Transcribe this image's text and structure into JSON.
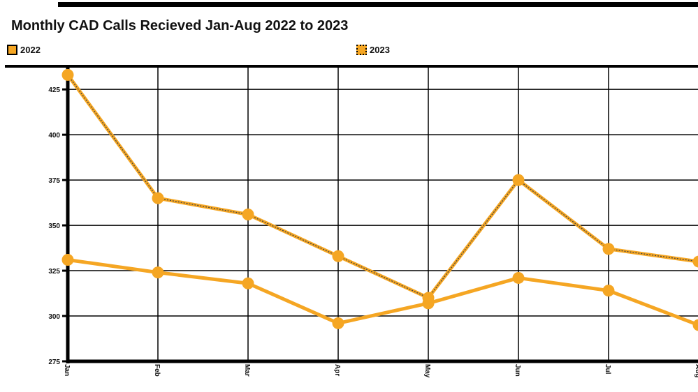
{
  "chart_data": {
    "type": "line",
    "title": "Monthly CAD Calls Recieved Jan-Aug 2022 to 2023",
    "xlabel": "",
    "ylabel": "",
    "categories": [
      "Jan",
      "Feb",
      "Mar",
      "Apr",
      "May",
      "Jun",
      "Jul",
      "Aug"
    ],
    "ylim": [
      275,
      437
    ],
    "yticks": [
      275,
      300,
      325,
      350,
      375,
      400,
      425
    ],
    "grid": true,
    "legend_position": "top",
    "series": [
      {
        "name": "2022",
        "values": [
          331,
          324,
          318,
          296,
          307,
          321,
          314,
          295
        ],
        "color": "#f5a623",
        "line_style": "solid"
      },
      {
        "name": "2023",
        "values": [
          433,
          365,
          356,
          333,
          310,
          375,
          337,
          330
        ],
        "color": "#f5a623",
        "line_style": "dotted-outline"
      }
    ]
  }
}
